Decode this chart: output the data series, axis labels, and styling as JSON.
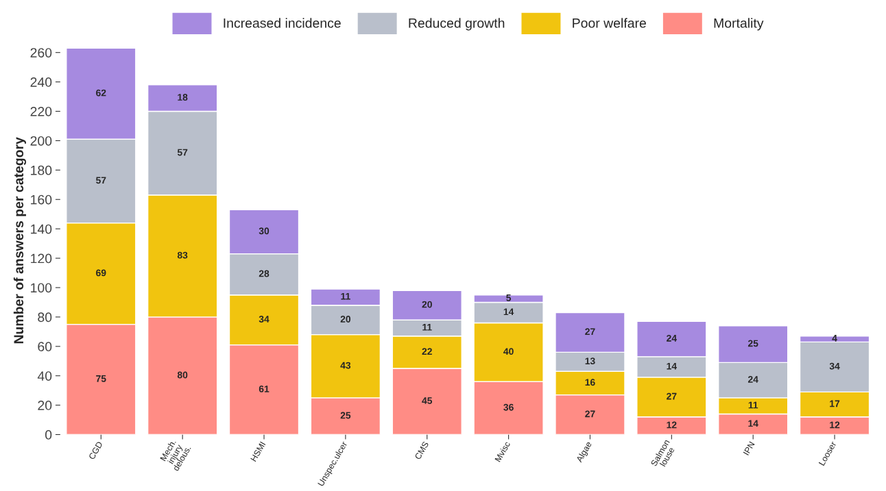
{
  "chart_data": {
    "type": "bar",
    "stacked": true,
    "ylabel": "Number of answers per category",
    "categories": [
      "CGD",
      "Mech.\ninjury\ndelous.",
      "HSMI",
      "Unspec.ulcer",
      "CMS",
      "Mvisc",
      "Algae",
      "Salmon\nlouse",
      "IPN",
      "Looser"
    ],
    "series": [
      {
        "name": "Mortality",
        "color": "#ff8c85",
        "values": [
          75,
          80,
          61,
          25,
          45,
          36,
          27,
          12,
          14,
          12
        ]
      },
      {
        "name": "Poor welfare",
        "color": "#f1c40f",
        "values": [
          69,
          83,
          34,
          43,
          22,
          40,
          16,
          27,
          11,
          17
        ]
      },
      {
        "name": "Reduced growth",
        "color": "#b9bfcb",
        "values": [
          57,
          57,
          28,
          20,
          11,
          14,
          13,
          14,
          24,
          34
        ]
      },
      {
        "name": "Increased incidence",
        "color": "#a68ae0",
        "values": [
          62,
          18,
          30,
          11,
          20,
          5,
          27,
          24,
          25,
          4
        ]
      }
    ],
    "ylim": [
      0,
      264
    ],
    "yticks": [
      0,
      20,
      40,
      60,
      80,
      100,
      120,
      140,
      160,
      180,
      200,
      220,
      240,
      260
    ],
    "data_labels": true,
    "legend": "top",
    "grid": false
  }
}
